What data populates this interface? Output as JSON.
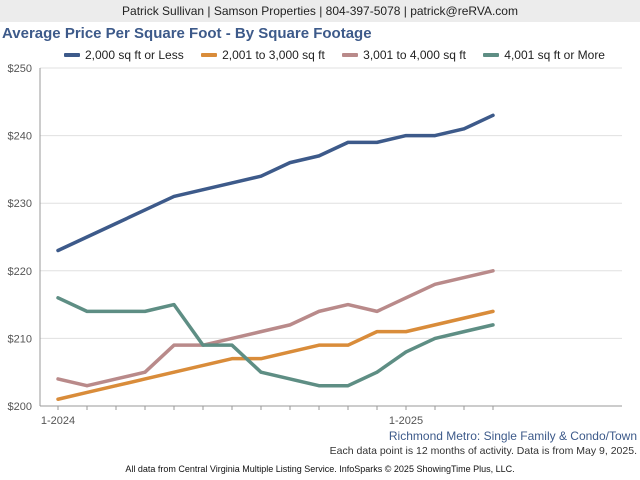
{
  "header": {
    "contact": "Patrick Sullivan | Samson Properties | 804-397-5078 | patrick@reRVA.com"
  },
  "notes": {
    "region": "Richmond Metro: Single Family & Condo/Town",
    "activity": "Each data point is 12 months of activity. Data is from May 9, 2025.",
    "source": "All data from Central Virginia Multiple Listing Service. InfoSparks © 2025 ShowingTime Plus, LLC."
  },
  "chart_data": {
    "type": "line",
    "title": "Average Price Per Square Foot - By Square Footage",
    "x": [
      "2024-01",
      "2024-02",
      "2024-03",
      "2024-04",
      "2024-05",
      "2024-06",
      "2024-07",
      "2024-08",
      "2024-09",
      "2024-10",
      "2024-11",
      "2024-12",
      "2025-01",
      "2025-02",
      "2025-03",
      "2025-04"
    ],
    "x_tick_labels": [
      {
        "x": "2024-01",
        "label": "1-2024"
      },
      {
        "x": "2025-01",
        "label": "1-2025"
      }
    ],
    "y_tick_labels": [
      "$200",
      "$210",
      "$220",
      "$230",
      "$240",
      "$250"
    ],
    "y_ticks": [
      200,
      210,
      220,
      230,
      240,
      250
    ],
    "ylim": [
      200,
      250
    ],
    "grid": true,
    "legend_position": "top",
    "series": [
      {
        "name": "2,000 sq ft or Less",
        "color": "#3d5a8a",
        "values": [
          223,
          225,
          227,
          229,
          231,
          232,
          233,
          234,
          236,
          237,
          239,
          239,
          240,
          240,
          241,
          243
        ]
      },
      {
        "name": "2,001 to 3,000 sq ft",
        "color": "#d98c3a",
        "values": [
          201,
          202,
          203,
          204,
          205,
          206,
          207,
          207,
          208,
          209,
          209,
          211,
          211,
          212,
          213,
          214
        ]
      },
      {
        "name": "3,001 to 4,000 sq ft",
        "color": "#b98a8a",
        "values": [
          204,
          203,
          204,
          205,
          209,
          209,
          210,
          211,
          212,
          214,
          215,
          214,
          216,
          218,
          219,
          220
        ]
      },
      {
        "name": "4,001 sq ft or More",
        "color": "#5e8e84",
        "values": [
          216,
          214,
          214,
          214,
          215,
          209,
          209,
          205,
          204,
          203,
          203,
          205,
          208,
          210,
          211,
          212
        ]
      }
    ]
  }
}
